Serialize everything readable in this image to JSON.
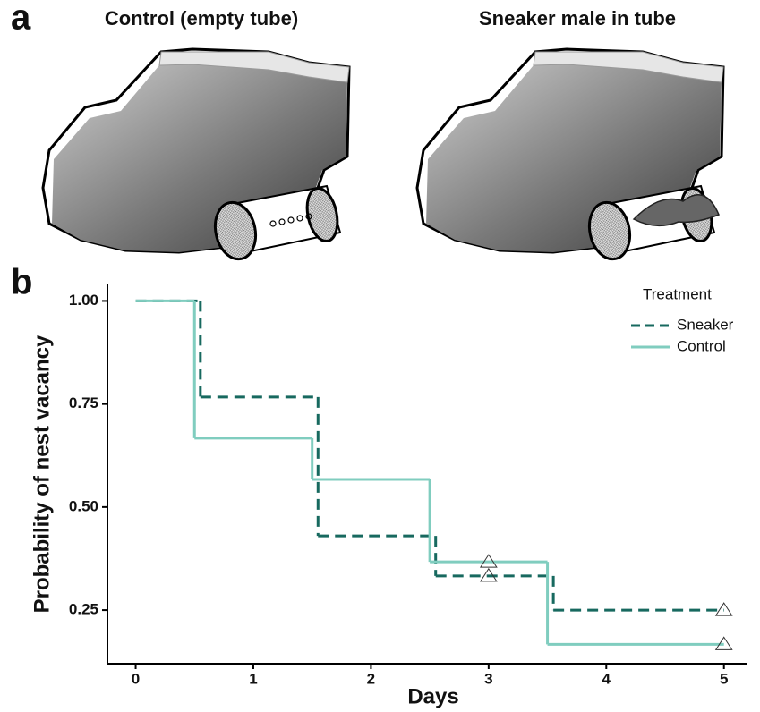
{
  "panel_a": {
    "label": "a",
    "left_title": "Control (empty tube)",
    "right_title": "Sneaker male in tube"
  },
  "panel_b_label": "b",
  "chart_data": {
    "type": "step",
    "x_label": "Days",
    "y_label": "Probability of nest vacancy",
    "legend_title": "Treatment",
    "xlim": [
      -0.24,
      5.2
    ],
    "xticks": [
      0,
      1,
      2,
      3,
      4,
      5
    ],
    "ylim": [
      0.12,
      1.04
    ],
    "yticks": [
      {
        "value": 0.25,
        "label": "0.25"
      },
      {
        "value": 0.5,
        "label": "0.50"
      },
      {
        "value": 0.75,
        "label": "0.75"
      },
      {
        "value": 1,
        "label": "1.00"
      }
    ],
    "grid": false,
    "series": [
      {
        "name": "Sneaker",
        "color": "#17695f",
        "dashed": true,
        "x": [
          0,
          0.55,
          1.55,
          2.55,
          3.55,
          5
        ],
        "values": [
          1,
          0.767,
          0.43,
          0.333,
          0.25,
          0.25
        ],
        "censor_x": [
          3,
          5
        ],
        "censor_values": [
          0.333,
          0.25
        ]
      },
      {
        "name": "Control",
        "color": "#80cdbf",
        "dashed": false,
        "x": [
          0,
          0.5,
          1.5,
          2.5,
          3.5,
          5
        ],
        "values": [
          1,
          0.667,
          0.567,
          0.367,
          0.167,
          0.167
        ],
        "censor_x": [
          3,
          5
        ],
        "censor_values": [
          0.367,
          0.167
        ]
      }
    ]
  }
}
